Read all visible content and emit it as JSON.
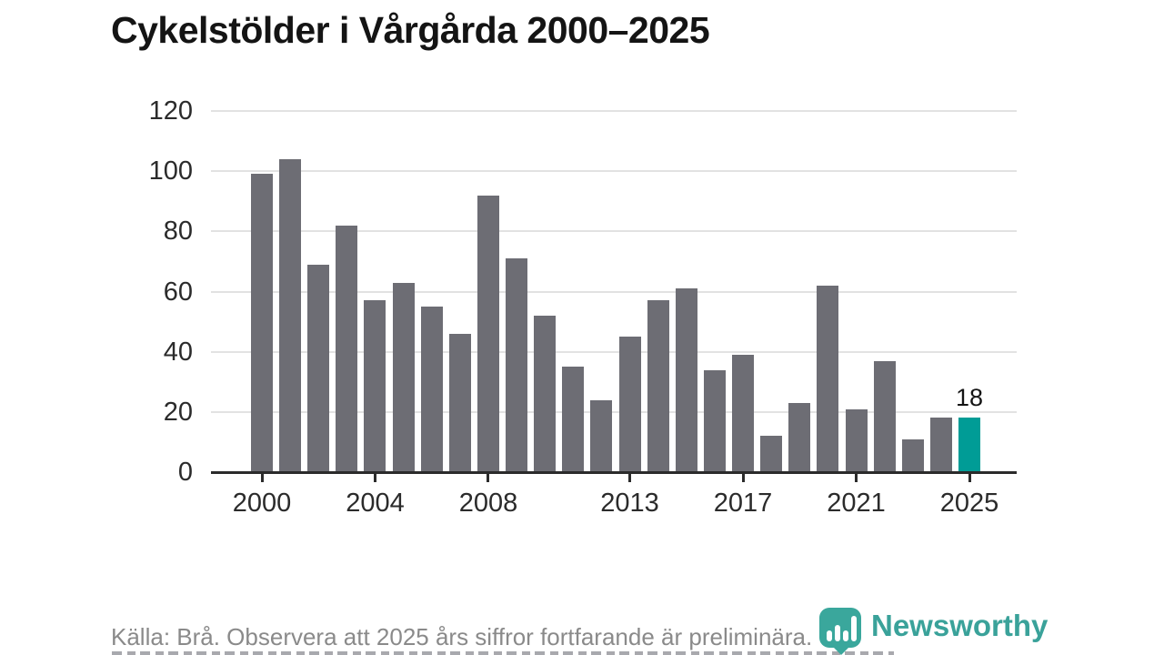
{
  "page": {
    "title": "Cykelstölder i Vårgårda 2000–2025"
  },
  "chart_data": {
    "type": "bar",
    "title": "Cykelstölder i Vårgårda 2000–2025",
    "categories": [
      2000,
      2001,
      2002,
      2003,
      2004,
      2005,
      2006,
      2007,
      2008,
      2009,
      2010,
      2011,
      2012,
      2013,
      2014,
      2015,
      2016,
      2017,
      2018,
      2019,
      2020,
      2021,
      2022,
      2023,
      2024,
      2025
    ],
    "values": [
      99,
      104,
      69,
      82,
      57,
      63,
      55,
      46,
      92,
      71,
      52,
      35,
      24,
      45,
      57,
      61,
      34,
      39,
      12,
      23,
      62,
      21,
      37,
      11,
      18,
      18
    ],
    "highlight_index": 25,
    "bar_color": "#6d6d74",
    "highlight_color": "#009c96",
    "ylim": [
      0,
      120
    ],
    "yticks": [
      0,
      20,
      40,
      60,
      80,
      100,
      120
    ],
    "xtick_years": [
      2000,
      2004,
      2008,
      2013,
      2017,
      2021,
      2025
    ],
    "xtick_labels": [
      "2000",
      "2004",
      "2008",
      "2013",
      "2017",
      "2021",
      "2025"
    ],
    "grid": "horizontal",
    "legend": "none",
    "annotation": {
      "index": 25,
      "label": "18"
    }
  },
  "footer": {
    "source_text": "Källa: Brå. Observera att 2025 års siffror fortfarande är preliminära."
  },
  "logo": {
    "text": "Newsworthy",
    "color": "#3aa29a"
  }
}
